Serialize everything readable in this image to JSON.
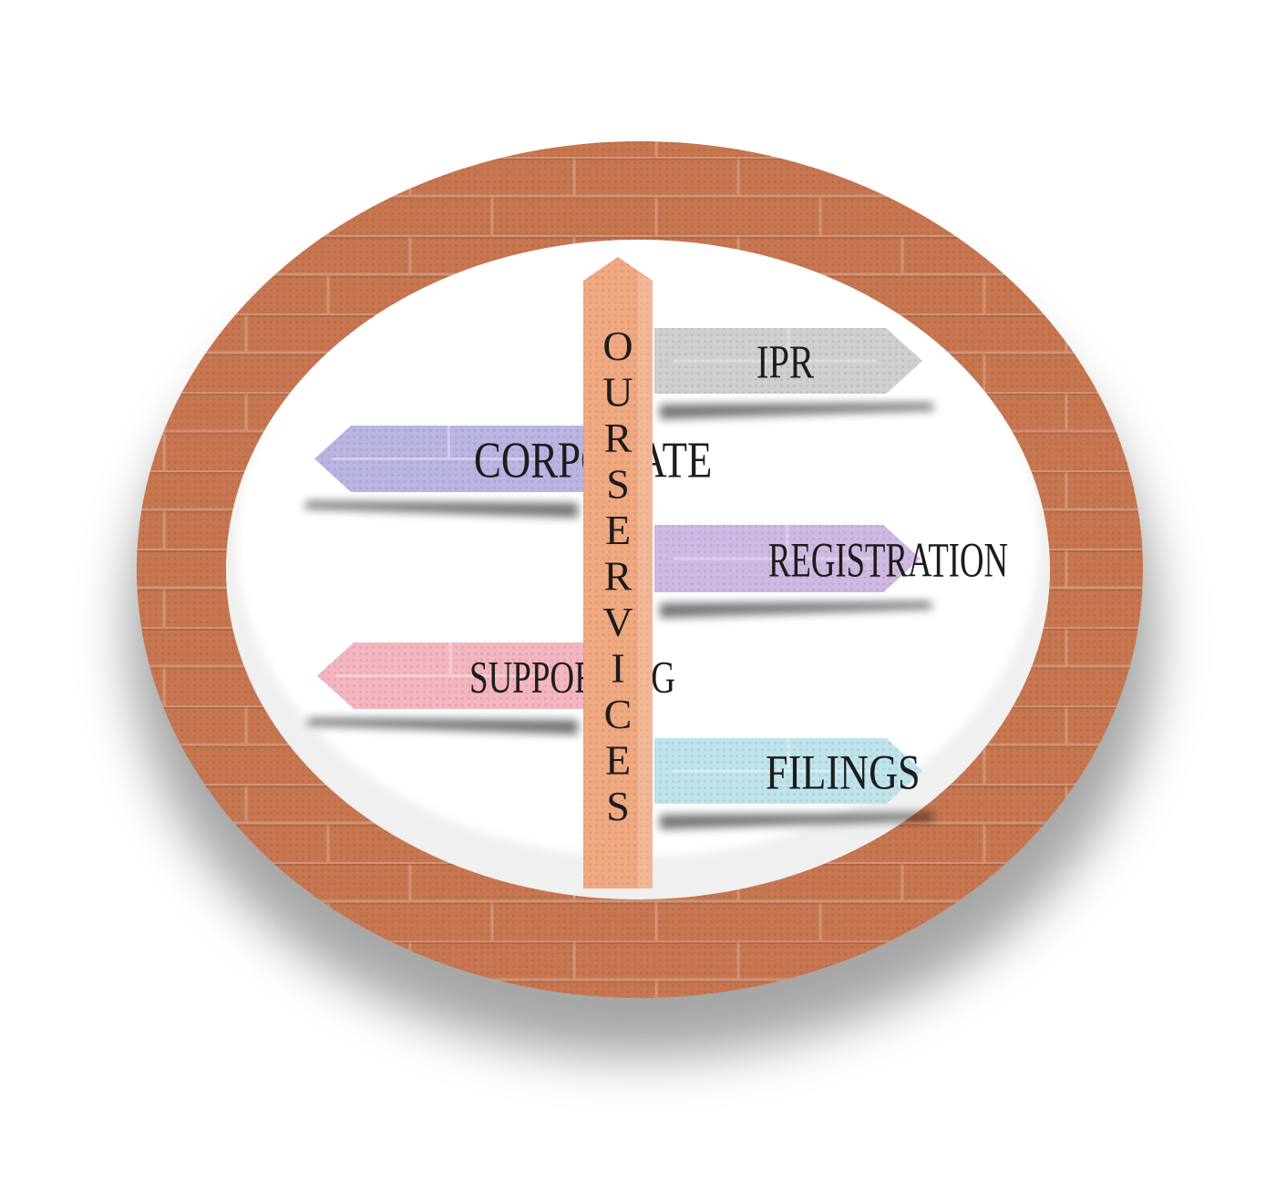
{
  "signpost": {
    "post_letters": [
      "O",
      "U",
      "R",
      "S",
      "E",
      "R",
      "V",
      "I",
      "C",
      "E",
      "S"
    ],
    "signs": [
      {
        "label": "IPR",
        "direction": "right",
        "color": "#cfcfcf"
      },
      {
        "label": "CORPORATE",
        "direction": "left",
        "color": "#b9b5e2"
      },
      {
        "label": "REGISTRATION",
        "direction": "right",
        "color": "#cfb9e2"
      },
      {
        "label": "SUPPORTING",
        "direction": "left",
        "color": "#f3b5c0"
      },
      {
        "label": "FILINGS",
        "direction": "right",
        "color": "#bfe3ea"
      }
    ]
  },
  "colors": {
    "ring": "#c77650",
    "ring_dark": "#a85c3c",
    "post": "#f0a880",
    "text": "#1c1c1c"
  }
}
